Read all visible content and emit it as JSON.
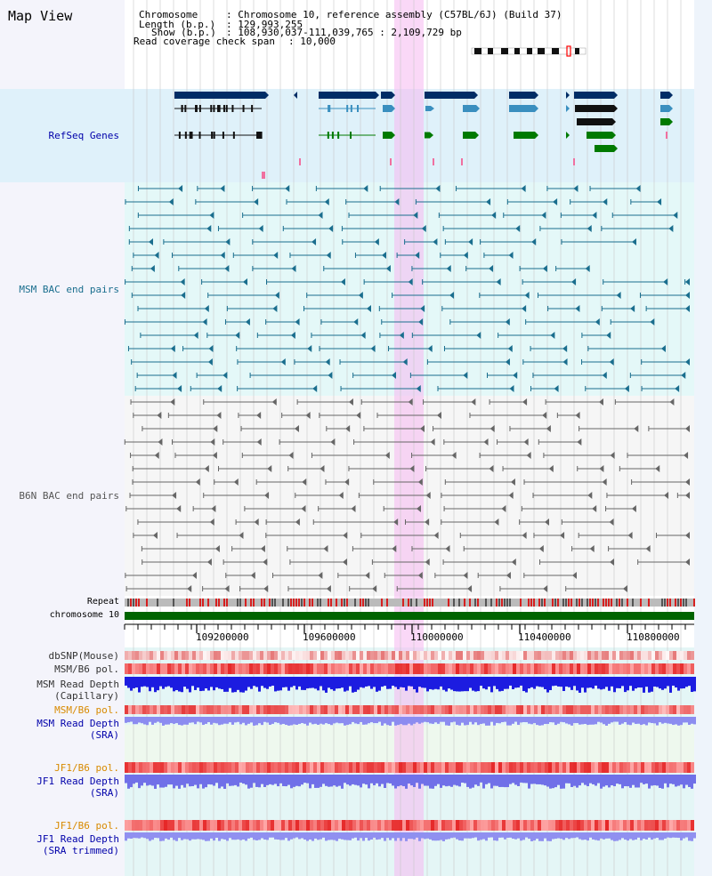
{
  "page_title": "Map View",
  "info": {
    "chromosome_label": "Chromosome",
    "chromosome_value": "Chromosome 10, reference assembly (C57BL/6J) (Build 37)",
    "length_label": "Length (b.p.)",
    "length_value": "129,993,255",
    "show_label": "Show (b.p.)",
    "show_value": "108,930,037-111,039,765 : 2,109,729 bp",
    "coverage_label": "Read coverage check span",
    "coverage_value": "10,000"
  },
  "tracks": {
    "refseq": "RefSeq Genes",
    "msm_bac": "MSM BAC end pairs",
    "b6n_bac": "B6N BAC end pairs",
    "repeat": "Repeat",
    "chromosome": "chromosome 10",
    "dbsnp": "dbSNP(Mouse)",
    "msm_pol": "MSM/B6 pol.",
    "msm_depth_cap_1": "MSM Read Depth",
    "msm_depth_cap_2": "(Capillary)",
    "msm_pol_sra": "MSM/B6 pol.",
    "msm_depth_sra_1": "MSM Read Depth",
    "msm_depth_sra_2": "(SRA)",
    "jf1_pol": "JF1/B6 pol.",
    "jf1_depth_1": "JF1 Read Depth",
    "jf1_depth_2": "(SRA)",
    "jf1_pol_trim": "JF1/B6 pol.",
    "jf1_depth_trim_1": "JF1 Read Depth",
    "jf1_depth_trim_2": "(SRA trimmed)"
  },
  "axis": {
    "ticks": [
      "109200000",
      "109600000",
      "110000000",
      "110400000",
      "110800000"
    ]
  },
  "colors": {
    "refseq_dark": "#002d66",
    "refseq_mid": "#3a8fbf",
    "refseq_green": "#007a00",
    "msm_bac": "#1a6e8e",
    "b6n_bac": "#666666",
    "highlight": "#f5b8f0",
    "chrom_bar": "#006400",
    "label_blue": "#0000aa",
    "label_orange": "#d88a00",
    "label_teal": "#1a6e8e"
  }
}
